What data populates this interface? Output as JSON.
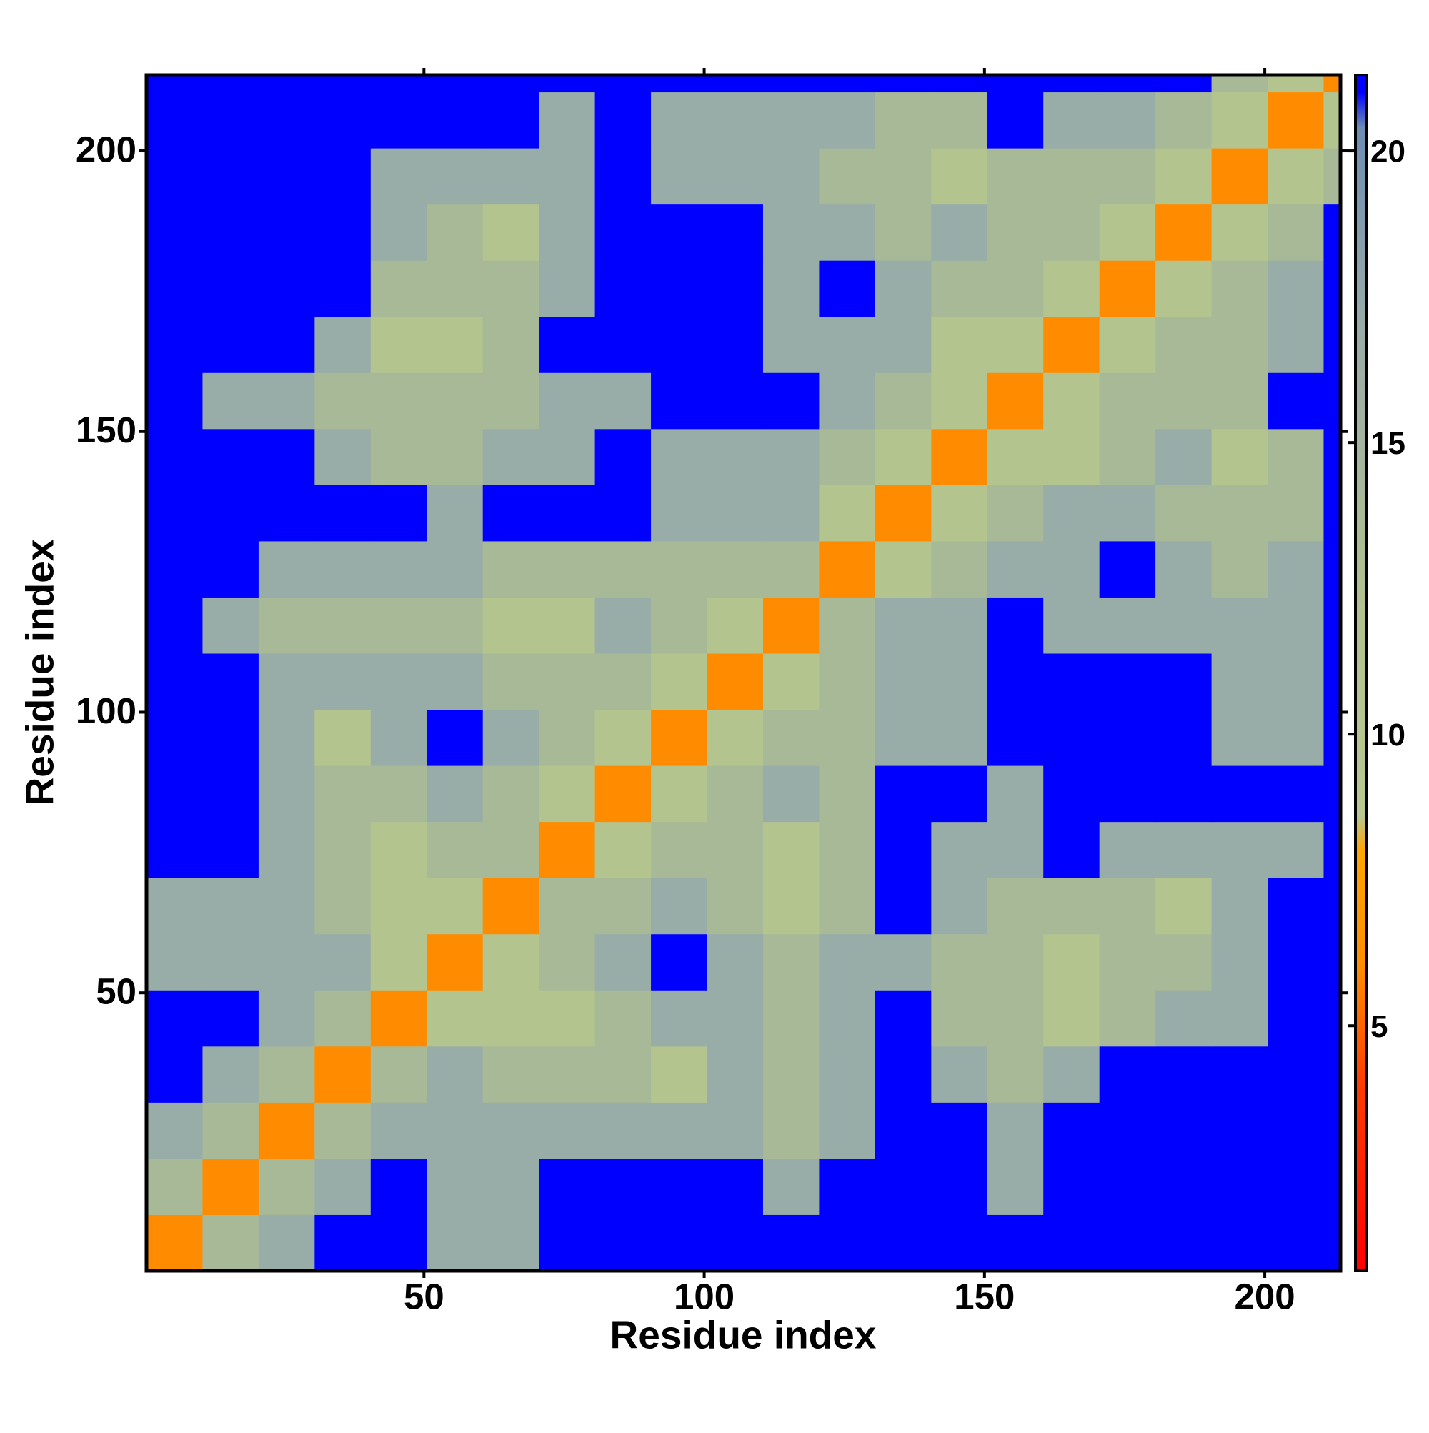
{
  "chart_data": {
    "type": "heatmap",
    "x_label": "Residue index",
    "y_label": "Residue index",
    "x_bins": [
      0.5,
      10.5,
      20.5,
      30.5,
      40.5,
      50.5,
      60.5,
      70.5,
      80.5,
      90.5,
      100.5,
      110.5,
      120.5,
      130.5,
      140.5,
      150.5,
      160.5,
      170.5,
      180.5,
      190.5,
      200.5,
      210.5,
      213.5
    ],
    "y_bins": [
      0.5,
      10.5,
      20.5,
      30.5,
      40.5,
      50.5,
      60.5,
      70.5,
      80.5,
      90.5,
      100.5,
      110.5,
      120.5,
      130.5,
      140.5,
      150.5,
      160.5,
      170.5,
      180.5,
      190.5,
      200.5,
      210.5,
      213.5
    ],
    "z": [
      [
        6,
        14,
        17,
        21,
        21,
        17,
        17,
        21,
        21,
        21,
        21,
        21,
        21,
        21,
        21,
        21,
        21,
        21,
        21,
        21,
        21,
        21
      ],
      [
        14,
        6,
        14,
        17,
        21,
        17,
        17,
        21,
        21,
        21,
        21,
        17,
        21,
        21,
        21,
        17,
        21,
        21,
        21,
        21,
        21,
        21
      ],
      [
        17,
        14,
        6,
        14,
        17,
        17,
        17,
        17,
        17,
        17,
        17,
        14,
        17,
        21,
        21,
        17,
        21,
        21,
        21,
        21,
        21,
        21
      ],
      [
        21,
        17,
        14,
        6,
        14,
        17,
        14,
        14,
        14,
        11,
        17,
        14,
        17,
        21,
        17,
        14,
        17,
        21,
        21,
        21,
        21,
        21
      ],
      [
        21,
        21,
        17,
        14,
        6,
        11,
        11,
        11,
        14,
        17,
        17,
        14,
        17,
        21,
        14,
        14,
        11,
        14,
        17,
        17,
        21,
        21
      ],
      [
        17,
        17,
        17,
        17,
        11,
        6,
        11,
        14,
        17,
        21,
        17,
        14,
        17,
        17,
        14,
        14,
        11,
        14,
        14,
        17,
        21,
        21
      ],
      [
        17,
        17,
        17,
        14,
        11,
        11,
        6,
        14,
        14,
        17,
        14,
        11,
        14,
        21,
        17,
        14,
        14,
        14,
        11,
        17,
        21,
        21
      ],
      [
        21,
        21,
        17,
        14,
        11,
        14,
        14,
        6,
        11,
        14,
        14,
        11,
        14,
        21,
        17,
        17,
        21,
        17,
        17,
        17,
        17,
        21
      ],
      [
        21,
        21,
        17,
        14,
        14,
        17,
        14,
        11,
        6,
        11,
        14,
        17,
        14,
        21,
        21,
        17,
        21,
        21,
        21,
        21,
        21,
        21
      ],
      [
        21,
        21,
        17,
        11,
        17,
        21,
        17,
        14,
        11,
        6,
        11,
        14,
        14,
        17,
        17,
        21,
        21,
        21,
        21,
        17,
        17,
        21
      ],
      [
        21,
        21,
        17,
        17,
        17,
        17,
        14,
        14,
        14,
        11,
        6,
        11,
        14,
        17,
        17,
        21,
        21,
        21,
        21,
        17,
        17,
        21
      ],
      [
        21,
        17,
        14,
        14,
        14,
        14,
        11,
        11,
        17,
        14,
        11,
        6,
        14,
        17,
        17,
        21,
        17,
        17,
        17,
        17,
        17,
        21
      ],
      [
        21,
        21,
        17,
        17,
        17,
        17,
        14,
        14,
        14,
        14,
        14,
        14,
        6,
        11,
        14,
        17,
        17,
        21,
        17,
        14,
        17,
        21
      ],
      [
        21,
        21,
        21,
        21,
        21,
        17,
        21,
        21,
        21,
        17,
        17,
        17,
        11,
        6,
        11,
        14,
        17,
        17,
        14,
        14,
        14,
        21
      ],
      [
        21,
        21,
        21,
        17,
        14,
        14,
        17,
        17,
        21,
        17,
        17,
        17,
        14,
        11,
        6,
        11,
        11,
        14,
        17,
        11,
        14,
        21
      ],
      [
        21,
        17,
        17,
        14,
        14,
        14,
        14,
        17,
        17,
        21,
        21,
        21,
        17,
        14,
        11,
        6,
        11,
        14,
        14,
        14,
        21,
        21
      ],
      [
        21,
        21,
        21,
        17,
        11,
        11,
        14,
        21,
        21,
        21,
        21,
        17,
        17,
        17,
        11,
        11,
        6,
        11,
        14,
        14,
        17,
        21
      ],
      [
        21,
        21,
        21,
        21,
        14,
        14,
        14,
        17,
        21,
        21,
        21,
        17,
        21,
        17,
        14,
        14,
        11,
        6,
        11,
        14,
        17,
        21
      ],
      [
        21,
        21,
        21,
        21,
        17,
        14,
        11,
        17,
        21,
        21,
        21,
        17,
        17,
        14,
        17,
        14,
        14,
        11,
        6,
        11,
        14,
        21
      ],
      [
        21,
        21,
        21,
        21,
        17,
        17,
        17,
        17,
        21,
        17,
        17,
        17,
        14,
        14,
        11,
        14,
        14,
        14,
        11,
        6,
        11,
        14
      ],
      [
        21,
        21,
        21,
        21,
        21,
        21,
        21,
        17,
        21,
        17,
        17,
        17,
        17,
        14,
        14,
        21,
        17,
        17,
        14,
        11,
        6,
        11
      ],
      [
        21,
        21,
        21,
        21,
        21,
        21,
        21,
        21,
        21,
        21,
        21,
        21,
        21,
        21,
        21,
        21,
        21,
        21,
        21,
        14,
        11,
        6
      ]
    ],
    "xlim": [
      0.5,
      213.5
    ],
    "ylim": [
      0.5,
      213.5
    ],
    "xticks": [
      50,
      100,
      150,
      200
    ],
    "yticks": [
      50,
      100,
      150,
      200
    ],
    "colorbar_lim": [
      0.8,
      21.3
    ],
    "colorbar_ticks": [
      5,
      10,
      15,
      20
    ],
    "colorscale": [
      [
        0.8,
        "#ff0000"
      ],
      [
        4,
        "#ff3c00"
      ],
      [
        6,
        "#ff8c00"
      ],
      [
        8,
        "#ffa500"
      ],
      [
        8.6,
        "#b8c890"
      ],
      [
        12,
        "#b2c28e"
      ],
      [
        17,
        "#98aca8"
      ],
      [
        20.4,
        "#6e8cb4"
      ],
      [
        21,
        "#0000ff"
      ]
    ]
  }
}
